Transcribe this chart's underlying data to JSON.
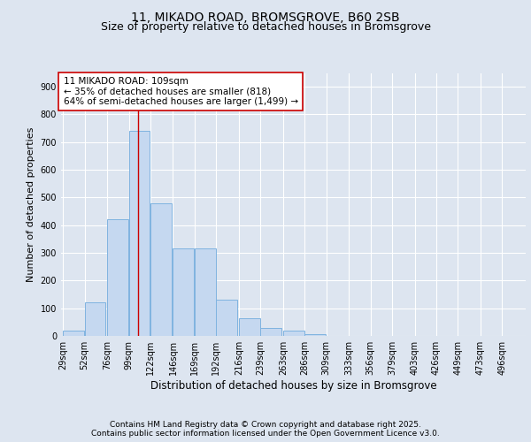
{
  "title1": "11, MIKADO ROAD, BROMSGROVE, B60 2SB",
  "title2": "Size of property relative to detached houses in Bromsgrove",
  "xlabel": "Distribution of detached houses by size in Bromsgrove",
  "ylabel": "Number of detached properties",
  "bins": [
    29,
    52,
    76,
    99,
    122,
    146,
    169,
    192,
    216,
    239,
    263,
    286,
    309,
    333,
    356,
    379,
    403,
    426,
    449,
    473,
    496
  ],
  "bar_heights": [
    20,
    120,
    420,
    740,
    480,
    315,
    315,
    130,
    65,
    30,
    20,
    7,
    0,
    0,
    0,
    0,
    0,
    0,
    0,
    0,
    0
  ],
  "bar_color": "#c5d8f0",
  "bar_edge_color": "#7fb3e0",
  "property_size": 109,
  "red_line_color": "#cc0000",
  "annotation_text": "11 MIKADO ROAD: 109sqm\n← 35% of detached houses are smaller (818)\n64% of semi-detached houses are larger (1,499) →",
  "annotation_box_color": "#ffffff",
  "annotation_box_edge": "#cc0000",
  "ylim": [
    0,
    950
  ],
  "yticks": [
    0,
    100,
    200,
    300,
    400,
    500,
    600,
    700,
    800,
    900
  ],
  "bg_color": "#dde5f0",
  "plot_bg_color": "#dde5f0",
  "footer1": "Contains HM Land Registry data © Crown copyright and database right 2025.",
  "footer2": "Contains public sector information licensed under the Open Government Licence v3.0.",
  "title1_fontsize": 10,
  "title2_fontsize": 9,
  "xlabel_fontsize": 8.5,
  "ylabel_fontsize": 8,
  "tick_fontsize": 7,
  "annotation_fontsize": 7.5,
  "footer_fontsize": 6.5
}
